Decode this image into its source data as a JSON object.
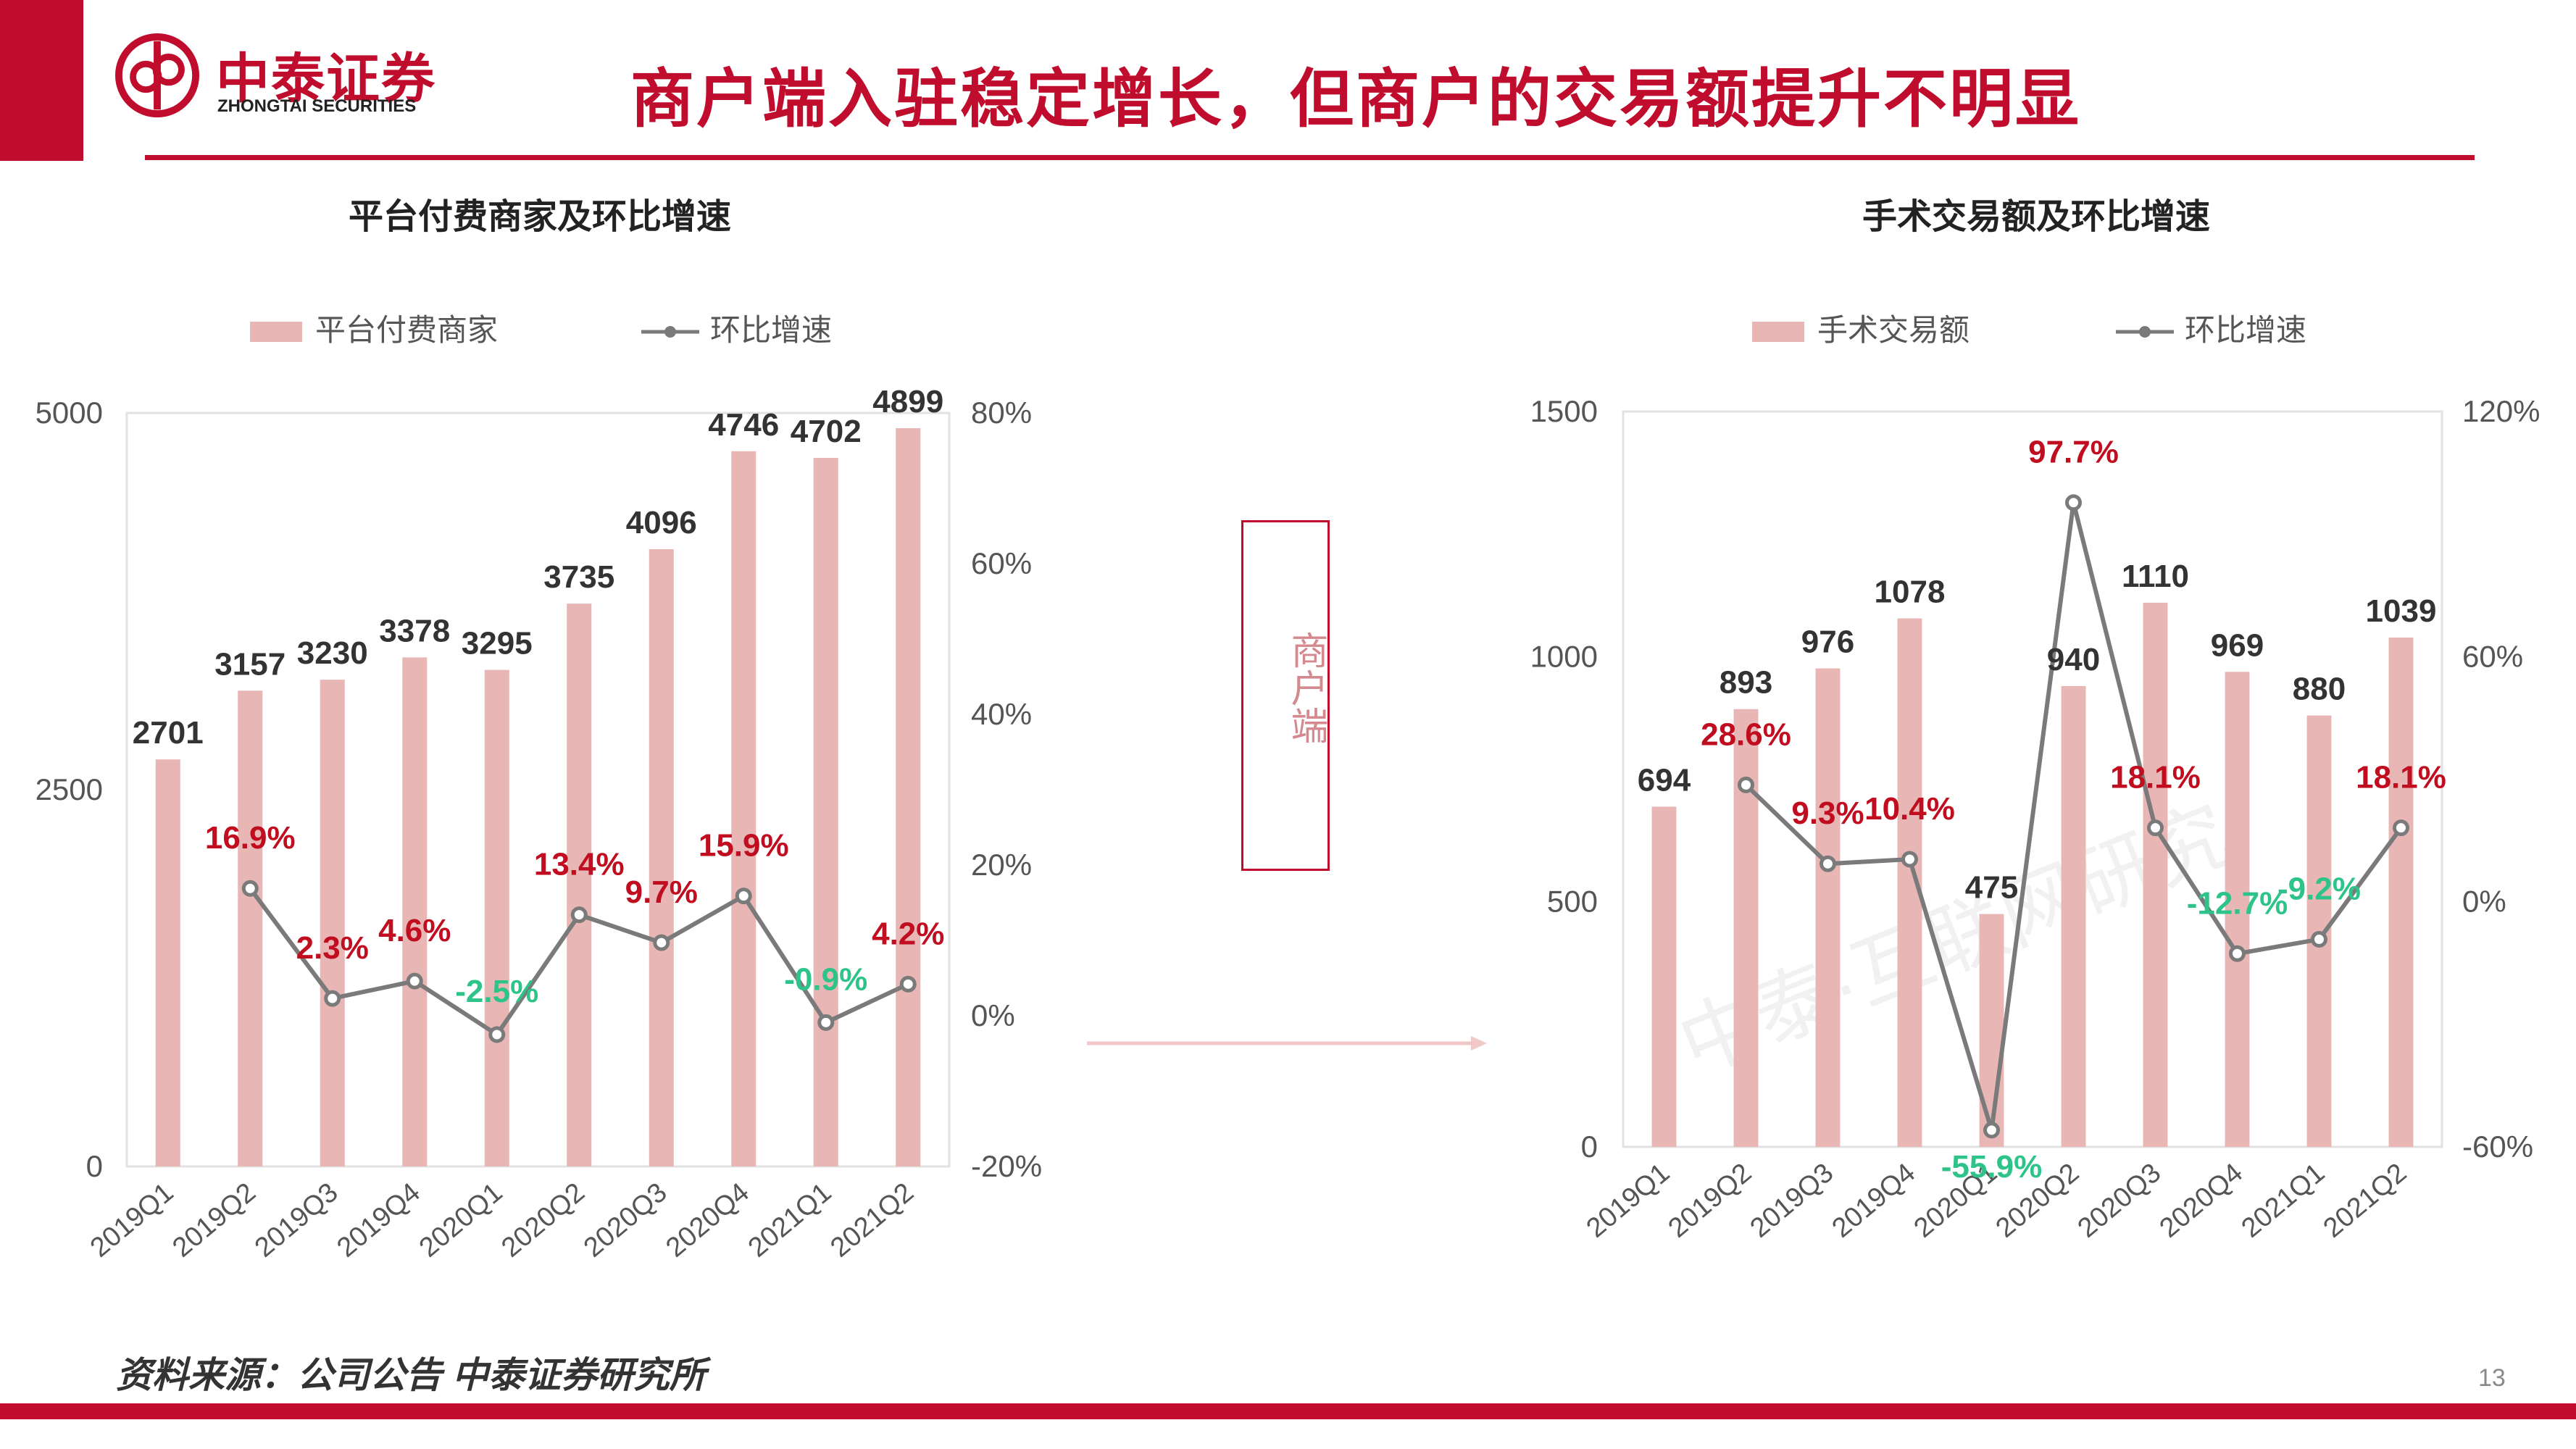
{
  "header": {
    "logo_cn": "中泰证券",
    "logo_en": "ZHONGTAI SECURITIES",
    "title": "商户端入驻稳定增长，但商户的交易额提升不明显"
  },
  "side_label": "商户端",
  "watermark": "中泰·互联网研究",
  "footer": {
    "source": "资料来源：公司公告 中泰证券研究所",
    "page_number": "13"
  },
  "colors": {
    "brand_red": "#c00d2d",
    "bar_pink": "#e8b7b5",
    "line_gray": "#7a7a7a",
    "label_positive": "#c00d1f",
    "label_negative": "#2ec489"
  },
  "chart_data": [
    {
      "type": "bar",
      "title": "平台付费商家及环比增速",
      "categories": [
        "2019Q1",
        "2019Q2",
        "2019Q3",
        "2019Q4",
        "2020Q1",
        "2020Q2",
        "2020Q3",
        "2020Q4",
        "2021Q1",
        "2021Q2"
      ],
      "series": [
        {
          "name": "平台付费商家",
          "type": "bar",
          "axis": "left",
          "values": [
            2701,
            3157,
            3230,
            3378,
            3295,
            3735,
            4096,
            4746,
            4702,
            4899
          ],
          "labels": [
            "2701",
            "3157",
            "3230",
            "3378",
            "3295",
            "3735",
            "4096",
            "4746",
            "4702",
            "4899"
          ]
        },
        {
          "name": "环比增速",
          "type": "line",
          "axis": "right",
          "values": [
            null,
            16.9,
            2.3,
            4.6,
            -2.5,
            13.4,
            9.7,
            15.9,
            -0.9,
            4.2
          ],
          "labels": [
            "",
            "16.9%",
            "2.3%",
            "4.6%",
            "-2.5%",
            "13.4%",
            "9.7%",
            "15.9%",
            "-0.9%",
            "4.2%"
          ]
        }
      ],
      "y_left": {
        "min": 0,
        "max": 5000,
        "ticks": [
          0,
          2500,
          5000
        ],
        "tick_labels": [
          "0",
          "2500",
          "5000"
        ]
      },
      "y_right": {
        "min": -20,
        "max": 80,
        "ticks": [
          -20,
          0,
          20,
          40,
          60,
          80
        ],
        "tick_labels": [
          "-20%",
          "0%",
          "20%",
          "40%",
          "60%",
          "80%"
        ]
      },
      "legend": {
        "position": "top",
        "items": [
          "平台付费商家",
          "环比增速"
        ]
      },
      "grid": false
    },
    {
      "type": "bar",
      "title": "手术交易额及环比增速",
      "categories": [
        "2019Q1",
        "2019Q2",
        "2019Q3",
        "2019Q4",
        "2020Q1",
        "2020Q2",
        "2020Q3",
        "2020Q4",
        "2021Q1",
        "2021Q2"
      ],
      "series": [
        {
          "name": "手术交易额",
          "type": "bar",
          "axis": "left",
          "values": [
            694,
            893,
            976,
            1078,
            475,
            940,
            1110,
            969,
            880,
            1039
          ],
          "labels": [
            "694",
            "893",
            "976",
            "1078",
            "475",
            "940",
            "1110",
            "969",
            "880",
            "1039"
          ]
        },
        {
          "name": "环比增速",
          "type": "line",
          "axis": "right",
          "values": [
            null,
            28.6,
            9.3,
            10.4,
            -55.9,
            97.7,
            18.1,
            -12.7,
            -9.2,
            18.1
          ],
          "labels": [
            "",
            "28.6%",
            "9.3%",
            "10.4%",
            "-55.9%",
            "97.7%",
            "18.1%",
            "-12.7%",
            "-9.2%",
            "18.1%"
          ]
        }
      ],
      "y_left": {
        "min": 0,
        "max": 1500,
        "ticks": [
          0,
          500,
          1000,
          1500
        ],
        "tick_labels": [
          "0",
          "500",
          "1000",
          "1500"
        ]
      },
      "y_right": {
        "min": -60,
        "max": 120,
        "ticks": [
          -60,
          0,
          60,
          120
        ],
        "tick_labels": [
          "-60%",
          "0%",
          "60%",
          "120%"
        ]
      },
      "legend": {
        "position": "top",
        "items": [
          "手术交易额",
          "环比增速"
        ]
      },
      "grid": false
    }
  ]
}
